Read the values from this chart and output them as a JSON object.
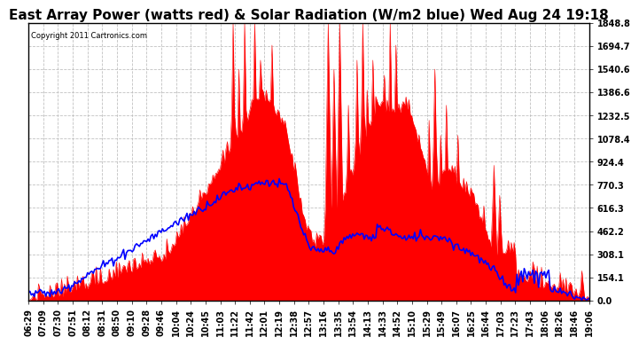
{
  "title": "East Array Power (watts red) & Solar Radiation (W/m2 blue) Wed Aug 24 19:18",
  "copyright": "Copyright 2011 Cartronics.com",
  "y_max": 1848.8,
  "y_min": 0.0,
  "y_ticks": [
    0.0,
    154.1,
    308.1,
    462.2,
    616.3,
    770.3,
    924.4,
    1078.4,
    1232.5,
    1386.6,
    1540.6,
    1694.7,
    1848.8
  ],
  "x_labels": [
    "06:29",
    "07:09",
    "07:30",
    "07:51",
    "08:12",
    "08:31",
    "08:50",
    "09:10",
    "09:28",
    "09:46",
    "10:04",
    "10:24",
    "10:45",
    "11:03",
    "11:22",
    "11:42",
    "12:01",
    "12:19",
    "12:38",
    "12:57",
    "13:16",
    "13:35",
    "13:54",
    "14:13",
    "14:33",
    "14:52",
    "15:10",
    "15:29",
    "15:49",
    "16:07",
    "16:25",
    "16:44",
    "17:03",
    "17:23",
    "17:43",
    "18:06",
    "18:26",
    "18:46",
    "19:06"
  ],
  "background_color": "#ffffff",
  "plot_bg_color": "#ffffff",
  "red_color": "#ff0000",
  "blue_color": "#0000ff",
  "grid_color": "#bbbbbb",
  "title_fontsize": 11,
  "tick_fontsize": 7,
  "border_color": "#000000"
}
